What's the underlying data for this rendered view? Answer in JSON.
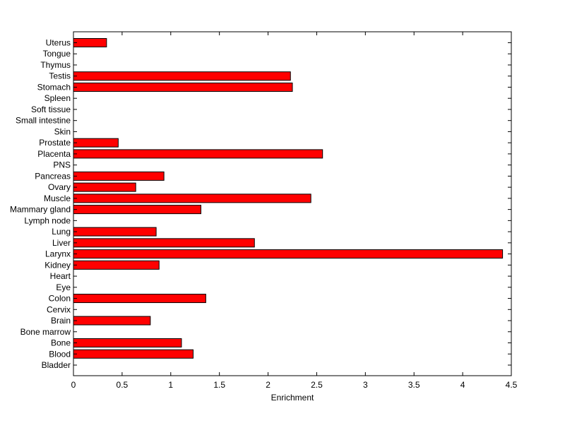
{
  "chart_data": {
    "type": "bar",
    "orientation": "horizontal",
    "categories": [
      "Uterus",
      "Tongue",
      "Thymus",
      "Testis",
      "Stomach",
      "Spleen",
      "Soft tissue",
      "Small intestine",
      "Skin",
      "Prostate",
      "Placenta",
      "PNS",
      "Pancreas",
      "Ovary",
      "Muscle",
      "Mammary gland",
      "Lymph node",
      "Lung",
      "Liver",
      "Larynx",
      "Kidney",
      "Heart",
      "Eye",
      "Colon",
      "Cervix",
      "Brain",
      "Bone marrow",
      "Bone",
      "Blood",
      "Bladder"
    ],
    "values": [
      0.34,
      0,
      0,
      2.23,
      2.25,
      0,
      0,
      0,
      0,
      0.46,
      2.56,
      0,
      0.93,
      0.64,
      2.44,
      1.31,
      0,
      0.85,
      1.86,
      4.41,
      0.88,
      0,
      0,
      1.36,
      0,
      0.79,
      0,
      1.11,
      1.23,
      0
    ],
    "xlabel": "Enrichment",
    "ylabel": "",
    "xlim": [
      0,
      4.5
    ],
    "xticks": [
      "0",
      "0.5",
      "1",
      "1.5",
      "2",
      "2.5",
      "3",
      "3.5",
      "4",
      "4.5"
    ],
    "bar_color": "#ff0000",
    "grid": false,
    "legend": "none"
  }
}
